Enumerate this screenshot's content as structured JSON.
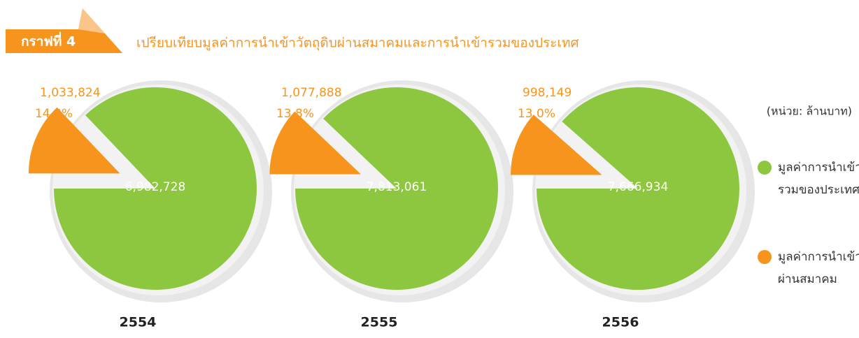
{
  "header": {
    "badge": "กราฟที่ 4",
    "title": "เปรียบเทียบมูลค่าการนำเข้าวัตถุดิบผ่านสมาคมและการนำเข้ารวมของประเทศ"
  },
  "unit": "(หน่วย: ล้านบาท)",
  "legend": [
    {
      "lines": [
        "มูลค่าการนำเข้า",
        "รวมของประเทศ*"
      ],
      "color": "#8dc63f"
    },
    {
      "lines": [
        "มูลค่าการนำเข้า",
        "ผ่านสมาคม"
      ],
      "color": "#f7941d"
    }
  ],
  "chart_data": [
    {
      "type": "pie",
      "title": "2554",
      "values": [
        6982728,
        1033824
      ],
      "value_labels": [
        "6,982,728",
        "1,033,824"
      ],
      "annotation": "14.8%"
    },
    {
      "type": "pie",
      "title": "2555",
      "values": [
        7813061,
        1077888
      ],
      "value_labels": [
        "7,813,061",
        "1,077,888"
      ],
      "annotation": "13.8%"
    },
    {
      "type": "pie",
      "title": "2556",
      "values": [
        7666934,
        998149
      ],
      "value_labels": [
        "7,666,934",
        "998,149"
      ],
      "annotation": "13.0%"
    }
  ]
}
